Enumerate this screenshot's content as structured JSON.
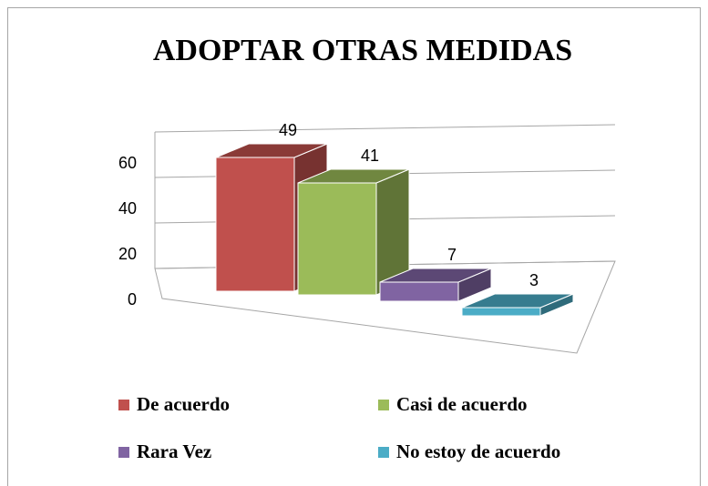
{
  "chart_data": {
    "type": "bar",
    "title": "ADOPTAR OTRAS MEDIDAS",
    "series": [
      {
        "name": "De acuerdo",
        "color": "#c0504d",
        "values": [
          49
        ]
      },
      {
        "name": "Casi de acuerdo",
        "color": "#9bbb59",
        "values": [
          41
        ]
      },
      {
        "name": "Rara Vez",
        "color": "#8064a2",
        "values": [
          7
        ]
      },
      {
        "name": "No estoy de acuerdo",
        "color": "#4bacc6",
        "values": [
          3
        ]
      }
    ],
    "ylim": [
      0,
      60
    ],
    "yticks": [
      0,
      20,
      40,
      60
    ],
    "grid": true,
    "legend": "bottom"
  }
}
